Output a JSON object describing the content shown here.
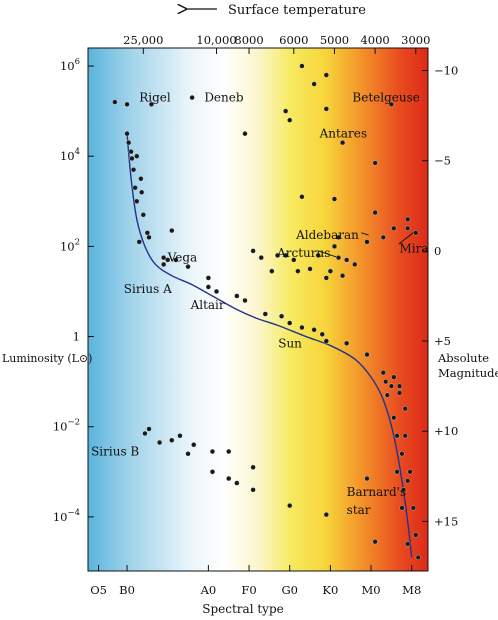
{
  "chart_data": {
    "type": "scatter",
    "title": "",
    "top_axis": {
      "label": "Surface temperature",
      "unit": "K",
      "ticks": [
        {
          "label": "25,000",
          "spectral": -0.3
        },
        {
          "label": "10,000",
          "spectral": 0.6
        },
        {
          "label": "8000",
          "spectral": 1.0
        },
        {
          "label": "6000",
          "spectral": 1.55
        },
        {
          "label": "5000",
          "spectral": 2.05
        },
        {
          "label": "4000",
          "spectral": 2.55
        },
        {
          "label": "3000",
          "spectral": 3.05
        }
      ]
    },
    "xlabel": "Spectral type",
    "x_ticks": [
      {
        "label": "O5",
        "spectral": -0.85
      },
      {
        "label": "B0",
        "spectral": -0.5
      },
      {
        "label": "A0",
        "spectral": 0.5
      },
      {
        "label": "F0",
        "spectral": 1.0
      },
      {
        "label": "G0",
        "spectral": 1.5
      },
      {
        "label": "K0",
        "spectral": 2.0
      },
      {
        "label": "M0",
        "spectral": 2.5
      },
      {
        "label": "M8",
        "spectral": 3.0
      }
    ],
    "xlim_spectral": [
      -0.98,
      3.2
    ],
    "ylabel_left": "Luminosity (L⊙)",
    "left_ticks": [
      {
        "base": "10",
        "exp": "6",
        "log_L": 6
      },
      {
        "base": "10",
        "exp": "4",
        "log_L": 4
      },
      {
        "base": "10",
        "exp": "2",
        "log_L": 2
      },
      {
        "base": "1",
        "exp": "",
        "log_L": 0
      },
      {
        "base": "10",
        "exp": "−2",
        "log_L": -2
      },
      {
        "base": "10",
        "exp": "−4",
        "log_L": -4
      }
    ],
    "ylim_log_L": [
      -5.2,
      6.4
    ],
    "ylabel_right": [
      "Absolute",
      "Magnitude"
    ],
    "right_ticks": [
      {
        "label": "−10",
        "log_L": 5.9
      },
      {
        "label": "−5",
        "log_L": 3.9
      },
      {
        "label": "0",
        "log_L": 1.9
      },
      {
        "label": "+5",
        "log_L": -0.1
      },
      {
        "label": "+10",
        "log_L": -2.1
      },
      {
        "label": "+15",
        "log_L": -4.1
      }
    ],
    "main_sequence_curve": [
      [
        -0.5,
        4.5
      ],
      [
        -0.45,
        3.5
      ],
      [
        -0.38,
        2.6
      ],
      [
        -0.28,
        2.0
      ],
      [
        -0.15,
        1.6
      ],
      [
        0.05,
        1.35
      ],
      [
        0.3,
        1.15
      ],
      [
        0.55,
        0.9
      ],
      [
        0.85,
        0.6
      ],
      [
        1.1,
        0.4
      ],
      [
        1.35,
        0.25
      ],
      [
        1.7,
        0.0
      ],
      [
        2.0,
        -0.2
      ],
      [
        2.3,
        -0.5
      ],
      [
        2.5,
        -0.9
      ],
      [
        2.65,
        -1.4
      ],
      [
        2.78,
        -2.2
      ],
      [
        2.88,
        -3.2
      ],
      [
        2.95,
        -4.1
      ],
      [
        3.0,
        -4.9
      ]
    ],
    "stars": [
      [
        -0.65,
        5.2
      ],
      [
        -0.5,
        5.15
      ],
      [
        -0.2,
        5.15
      ],
      [
        0.3,
        5.3
      ],
      [
        0.95,
        4.5
      ],
      [
        1.45,
        5.0
      ],
      [
        1.8,
        5.6
      ],
      [
        1.95,
        5.8
      ],
      [
        1.95,
        5.05
      ],
      [
        1.65,
        6.0
      ],
      [
        2.75,
        5.15
      ],
      [
        -0.5,
        4.5
      ],
      [
        -0.48,
        4.3
      ],
      [
        -0.45,
        4.1
      ],
      [
        -0.44,
        3.95
      ],
      [
        -0.38,
        4.0
      ],
      [
        -0.42,
        3.7
      ],
      [
        -0.33,
        3.5
      ],
      [
        -0.4,
        3.3
      ],
      [
        -0.32,
        3.2
      ],
      [
        -0.38,
        3.0
      ],
      [
        -0.3,
        2.7
      ],
      [
        -0.25,
        2.3
      ],
      [
        -0.23,
        2.2
      ],
      [
        0.05,
        2.35
      ],
      [
        -0.35,
        2.1
      ],
      [
        -0.05,
        1.75
      ],
      [
        -0.05,
        1.6
      ],
      [
        0.0,
        1.7
      ],
      [
        0.1,
        1.7
      ],
      [
        0.25,
        1.55
      ],
      [
        0.5,
        1.3
      ],
      [
        0.5,
        1.1
      ],
      [
        0.6,
        1.0
      ],
      [
        0.85,
        0.9
      ],
      [
        0.95,
        0.8
      ],
      [
        1.2,
        0.5
      ],
      [
        1.4,
        0.45
      ],
      [
        1.5,
        0.3
      ],
      [
        1.65,
        0.2
      ],
      [
        1.8,
        0.15
      ],
      [
        1.9,
        0.05
      ],
      [
        1.95,
        -0.1
      ],
      [
        2.2,
        -0.15
      ],
      [
        2.45,
        -0.4
      ],
      [
        2.65,
        -0.8
      ],
      [
        2.68,
        -1.0
      ],
      [
        2.78,
        -0.9
      ],
      [
        2.75,
        -1.1
      ],
      [
        2.85,
        -1.1
      ],
      [
        2.85,
        -1.25
      ],
      [
        2.7,
        -1.3
      ],
      [
        2.92,
        -1.6
      ],
      [
        2.78,
        -1.8
      ],
      [
        2.82,
        -2.2
      ],
      [
        2.92,
        -2.2
      ],
      [
        2.88,
        -2.6
      ],
      [
        2.82,
        -3.0
      ],
      [
        2.98,
        -3.0
      ],
      [
        2.95,
        -3.2
      ],
      [
        3.02,
        -3.8
      ],
      [
        3.05,
        -4.4
      ],
      [
        3.08,
        -4.9
      ],
      [
        2.95,
        -4.6
      ],
      [
        2.88,
        -3.8
      ],
      [
        2.9,
        -3.4
      ],
      [
        -0.28,
        -2.15
      ],
      [
        -0.23,
        -2.05
      ],
      [
        -0.1,
        -2.35
      ],
      [
        0.05,
        -2.3
      ],
      [
        0.15,
        -2.2
      ],
      [
        0.25,
        -2.6
      ],
      [
        0.32,
        -2.4
      ],
      [
        0.55,
        -2.55
      ],
      [
        0.75,
        -2.55
      ],
      [
        0.55,
        -3.0
      ],
      [
        0.75,
        -3.15
      ],
      [
        0.85,
        -3.25
      ],
      [
        1.05,
        -3.4
      ],
      [
        1.05,
        -2.9
      ],
      [
        1.5,
        -3.75
      ],
      [
        1.95,
        -3.95
      ],
      [
        2.45,
        -3.15
      ],
      [
        2.55,
        -4.55
      ],
      [
        1.5,
        4.8
      ],
      [
        1.65,
        3.1
      ],
      [
        2.05,
        3.05
      ],
      [
        2.15,
        4.3
      ],
      [
        2.55,
        3.85
      ],
      [
        2.65,
        2.2
      ],
      [
        2.78,
        2.4
      ],
      [
        2.95,
        2.4
      ],
      [
        3.05,
        2.3
      ],
      [
        2.95,
        2.6
      ],
      [
        2.55,
        2.75
      ],
      [
        2.45,
        2.1
      ],
      [
        2.1,
        2.2
      ],
      [
        2.05,
        2.0
      ],
      [
        1.85,
        1.8
      ],
      [
        1.6,
        1.45
      ],
      [
        1.55,
        1.7
      ],
      [
        1.45,
        1.8
      ],
      [
        1.75,
        1.5
      ],
      [
        2.0,
        1.45
      ],
      [
        2.1,
        1.75
      ],
      [
        2.2,
        1.7
      ],
      [
        2.3,
        1.6
      ],
      [
        1.95,
        1.3
      ],
      [
        2.15,
        1.35
      ],
      [
        1.28,
        1.45
      ],
      [
        1.15,
        1.75
      ],
      [
        1.35,
        1.8
      ],
      [
        1.05,
        1.9
      ]
    ],
    "labels": [
      {
        "text": "Rigel",
        "spectral": -0.35,
        "log_L": 5.3,
        "anchor": "start"
      },
      {
        "text": "Deneb",
        "spectral": 0.45,
        "log_L": 5.3,
        "anchor": "start"
      },
      {
        "text": "Betelgeuse",
        "spectral": 3.1,
        "log_L": 5.3,
        "anchor": "end"
      },
      {
        "text": "Antares",
        "spectral": 2.45,
        "log_L": 4.5,
        "anchor": "end"
      },
      {
        "text": "Aldebaran",
        "spectral": 2.35,
        "log_L": 2.25,
        "anchor": "end"
      },
      {
        "text": "Mira",
        "spectral": 2.85,
        "log_L": 1.95,
        "anchor": "start"
      },
      {
        "text": "Arcturus",
        "spectral": 2.0,
        "log_L": 1.85,
        "anchor": "end"
      },
      {
        "text": "Vega",
        "spectral": 0.0,
        "log_L": 1.75,
        "anchor": "start"
      },
      {
        "text": "Sirius A",
        "spectral": 0.05,
        "log_L": 1.05,
        "anchor": "end"
      },
      {
        "text": "Altair",
        "spectral": 0.7,
        "log_L": 0.7,
        "anchor": "end"
      },
      {
        "text": "Sun",
        "spectral": 1.65,
        "log_L": -0.15,
        "anchor": "end"
      },
      {
        "text": "Sirius B",
        "spectral": -0.35,
        "log_L": -2.55,
        "anchor": "end"
      },
      {
        "text": "Barnard's",
        "spectral": 2.2,
        "log_L": -3.45,
        "anchor": "start"
      },
      {
        "text": "star",
        "spectral": 2.2,
        "log_L": -3.85,
        "anchor": "start"
      }
    ],
    "leaders": [
      {
        "from": [
          2.38,
          2.3
        ],
        "to": [
          2.47,
          2.25
        ]
      },
      {
        "from": [
          2.84,
          2.05
        ],
        "to": [
          3.05,
          2.35
        ]
      },
      {
        "from": [
          1.85,
          1.9
        ],
        "to": [
          2.1,
          1.75
        ]
      }
    ]
  }
}
